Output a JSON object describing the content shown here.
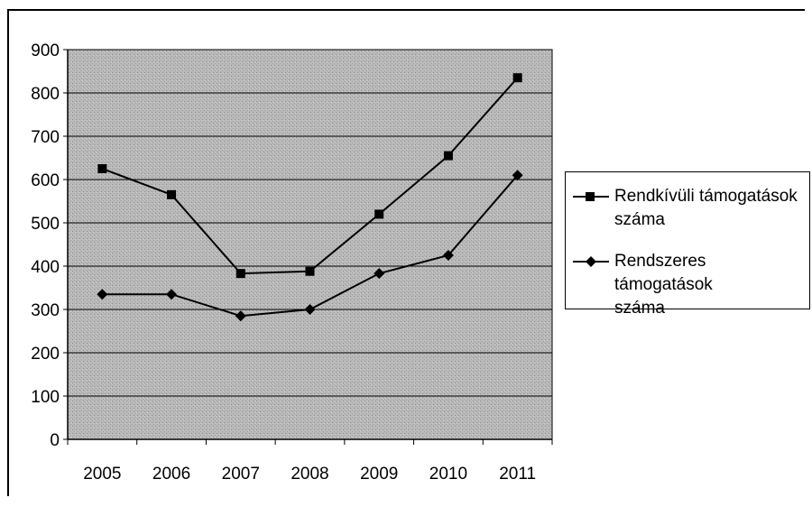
{
  "chart_data": {
    "type": "line",
    "title": "",
    "xlabel": "",
    "ylabel": "",
    "categories": [
      "2005",
      "2006",
      "2007",
      "2008",
      "2009",
      "2010",
      "2011"
    ],
    "ylim": [
      0,
      900
    ],
    "yticks": [
      0,
      100,
      200,
      300,
      400,
      500,
      600,
      700,
      800,
      900
    ],
    "grid": true,
    "legend_position": "right",
    "series": [
      {
        "name": "Rendkívüli támogatások száma",
        "marker": "square",
        "color": "#000000",
        "values": [
          625,
          565,
          383,
          388,
          520,
          655,
          835
        ]
      },
      {
        "name": "Rendszeres támogatások száma",
        "marker": "diamond",
        "color": "#000000",
        "values": [
          335,
          335,
          285,
          300,
          383,
          425,
          610
        ]
      }
    ]
  },
  "legend": {
    "item1_line1": "Rendkívüli támogatások",
    "item1_line2": "száma",
    "item2_line1": "Rendszeres támogatások",
    "item2_line2": "száma"
  }
}
